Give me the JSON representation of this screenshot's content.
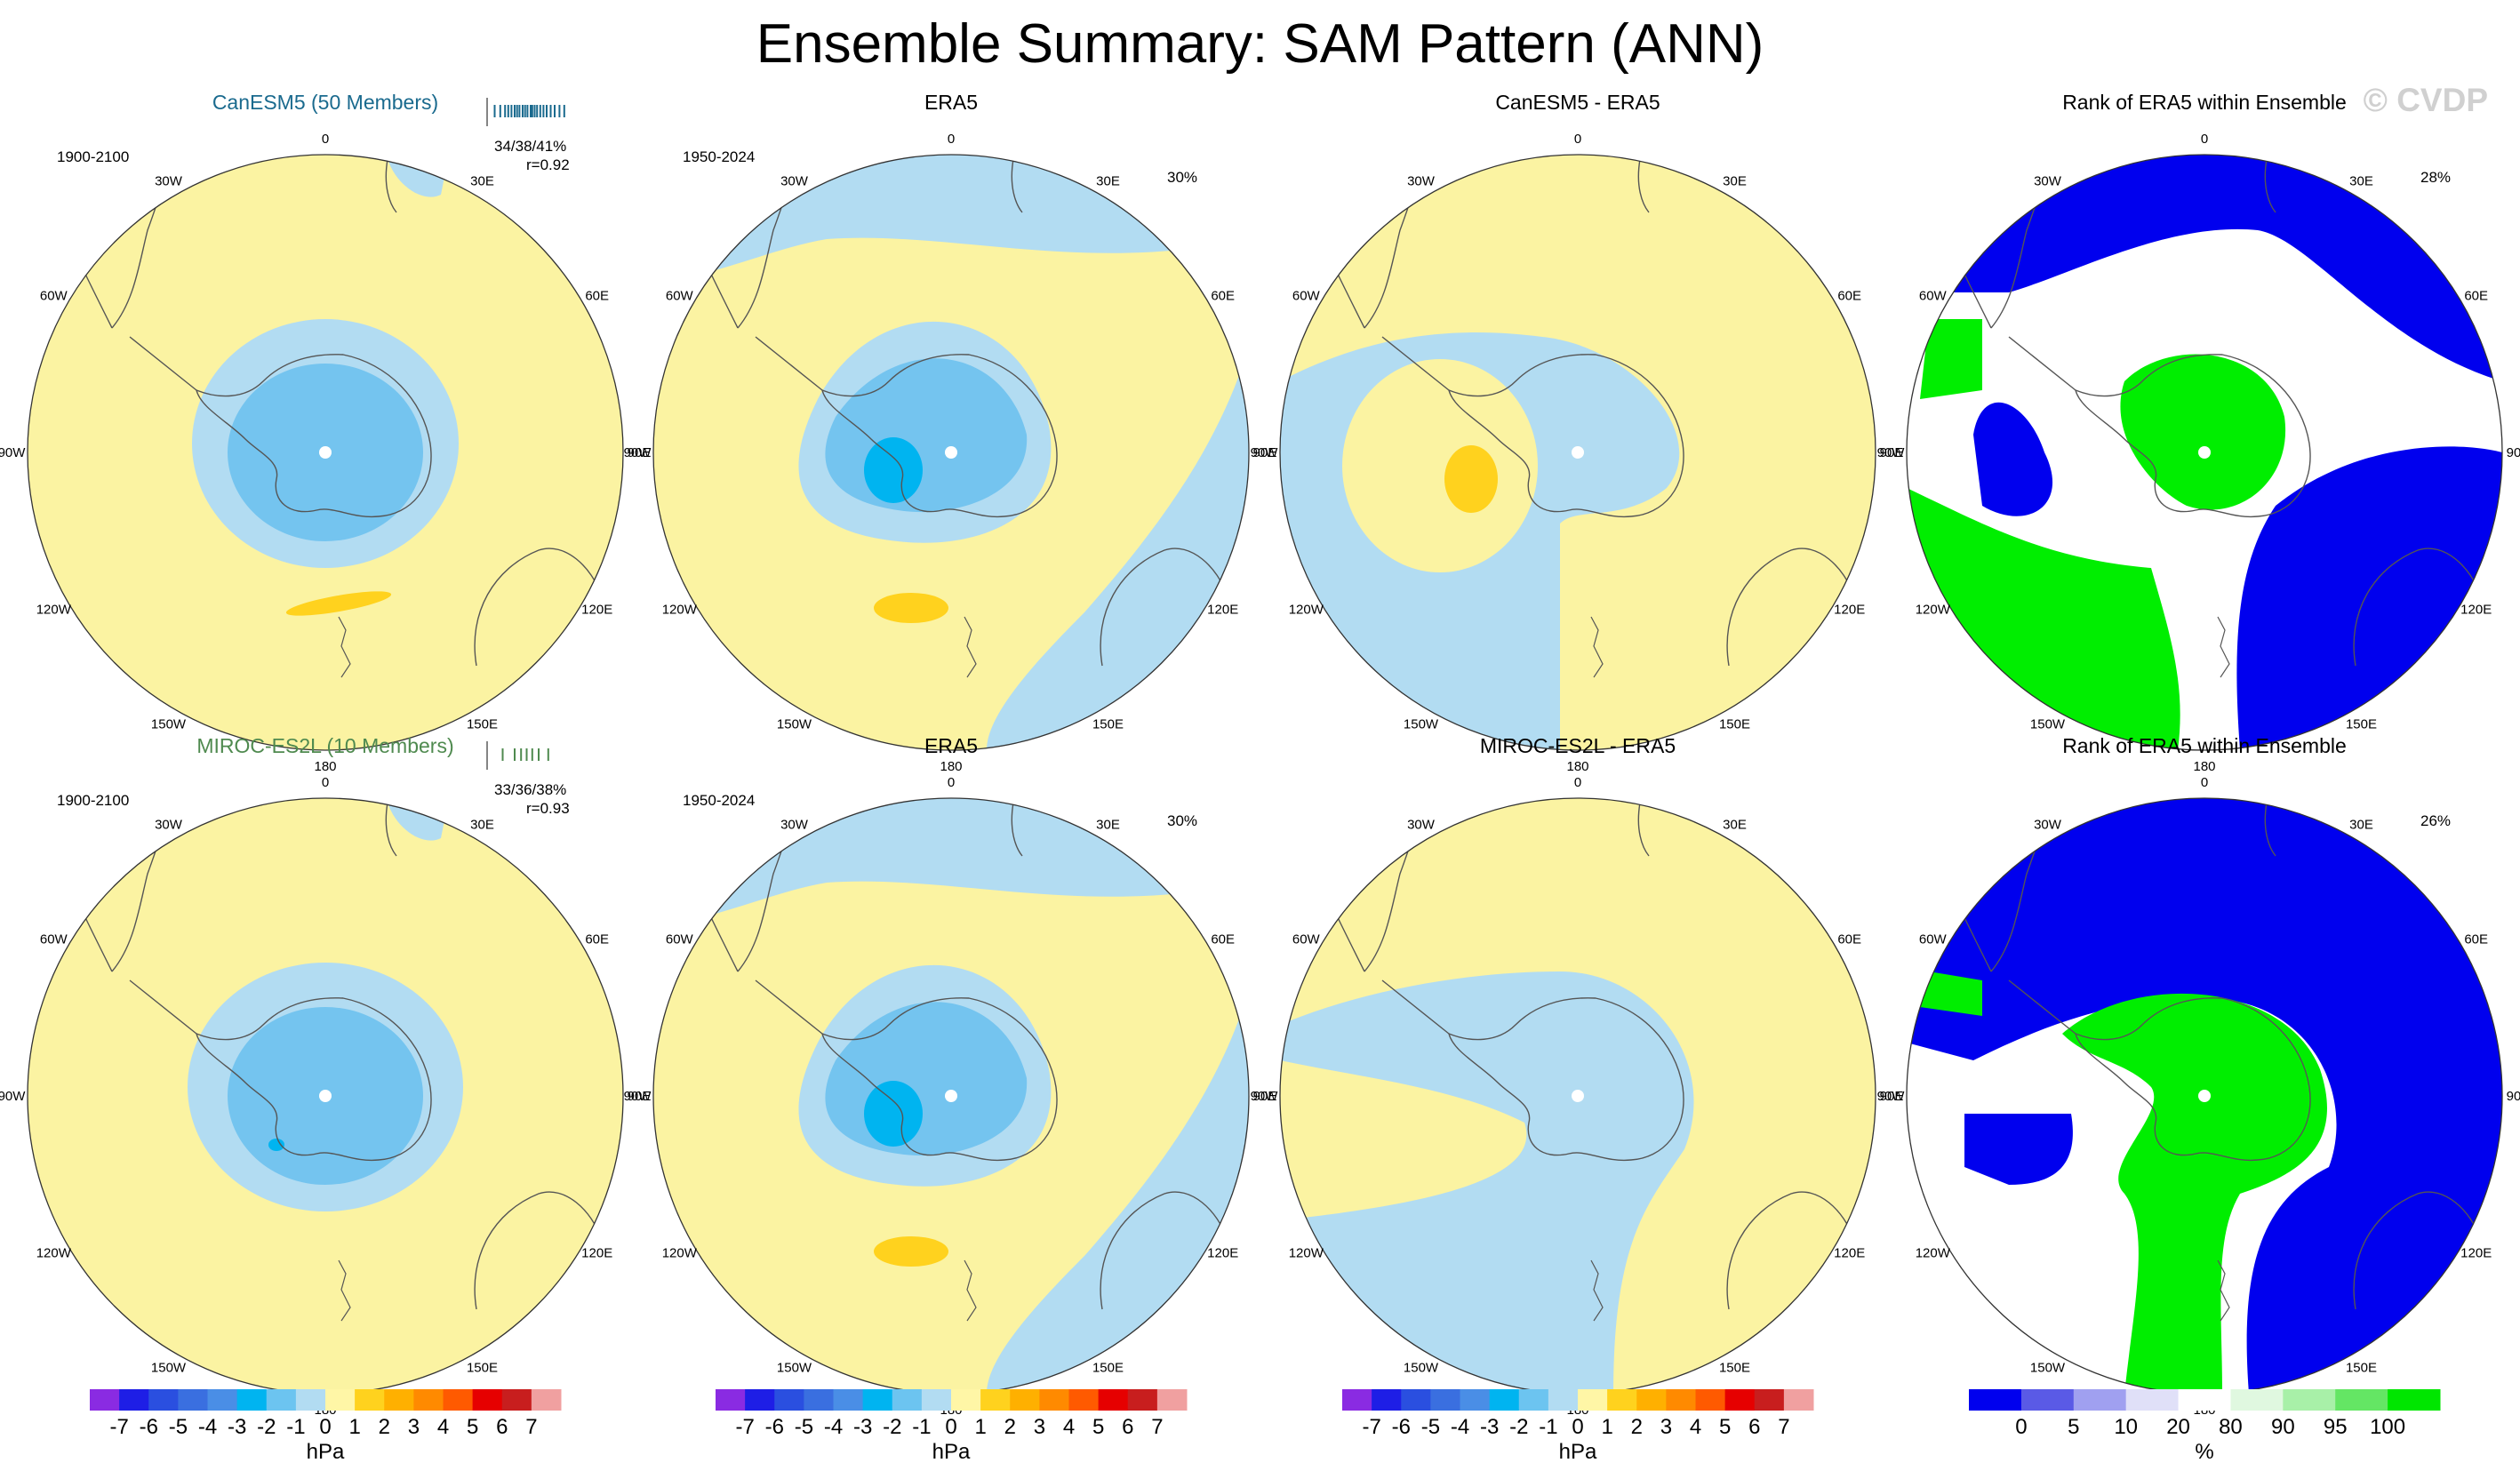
{
  "title": "Ensemble Summary: SAM Pattern (ANN)",
  "watermark": "© CVDP",
  "lon_labels": [
    "0",
    "30E",
    "60E",
    "90E",
    "120E",
    "150E",
    "180",
    "150W",
    "120W",
    "90W",
    "60W",
    "30W"
  ],
  "rows": [
    {
      "model_title": "CanESM5 (50 Members)",
      "model_color": "#1a6a8e",
      "model_years": "1900-2100",
      "stats": "34/38/41%",
      "corr": "r=0.92",
      "ticks": [
        0.05,
        0.12,
        0.18,
        0.22,
        0.26,
        0.3,
        0.33,
        0.36,
        0.4,
        0.43,
        0.46,
        0.5,
        0.52,
        0.55,
        0.58,
        0.62,
        0.66,
        0.7,
        0.75,
        0.8,
        0.86,
        0.92
      ],
      "obs_title": "ERA5",
      "obs_years": "1950-2024",
      "obs_pct": "30%",
      "diff_title": "CanESM5 - ERA5",
      "rank_title": "Rank of ERA5 within Ensemble",
      "rank_pct": "28%"
    },
    {
      "model_title": "MIROC-ES2L (10 Members)",
      "model_color": "#4f8a4f",
      "model_years": "1900-2100",
      "stats": "33/36/38%",
      "corr": "r=0.93",
      "ticks": [
        0.15,
        0.3,
        0.38,
        0.45,
        0.52,
        0.6,
        0.72
      ],
      "obs_title": "ERA5",
      "obs_years": "1950-2024",
      "obs_pct": "30%",
      "diff_title": "MIROC-ES2L - ERA5",
      "rank_title": "Rank of ERA5 within Ensemble",
      "rank_pct": "26%"
    }
  ],
  "hpa_colorbar": {
    "labels": [
      "-7",
      "-6",
      "-5",
      "-4",
      "-3",
      "-2",
      "-1",
      "0",
      "1",
      "2",
      "3",
      "4",
      "5",
      "6",
      "7"
    ],
    "colors": [
      "#8a2be2",
      "#1e1ee6",
      "#2a4fe0",
      "#3a6fe0",
      "#4a8ee6",
      "#00b4f0",
      "#6cc4f0",
      "#b2dcf2",
      "#fff6a6",
      "#ffd21e",
      "#ffb000",
      "#ff8a00",
      "#ff5a00",
      "#e60000",
      "#c81e1e",
      "#f0a0a0"
    ],
    "unit": "hPa"
  },
  "rank_colorbar": {
    "labels": [
      "0",
      "5",
      "10",
      "20",
      "80",
      "90",
      "95",
      "100"
    ],
    "colors": [
      "#0000ee",
      "#5a5ae6",
      "#a0a0f0",
      "#e0e0f8",
      "#ffffff",
      "#e0f8e0",
      "#a8f0a8",
      "#64e664",
      "#00e600"
    ],
    "unit": "%"
  },
  "colors": {
    "pos_fill": "#fbf3a2",
    "neg1": "#b2dcf2",
    "neg2": "#74c4ef",
    "neg3": "#00b4f0",
    "pos2": "#ffd21e",
    "rank_blue": "#0000ee",
    "rank_green": "#00ee00"
  }
}
